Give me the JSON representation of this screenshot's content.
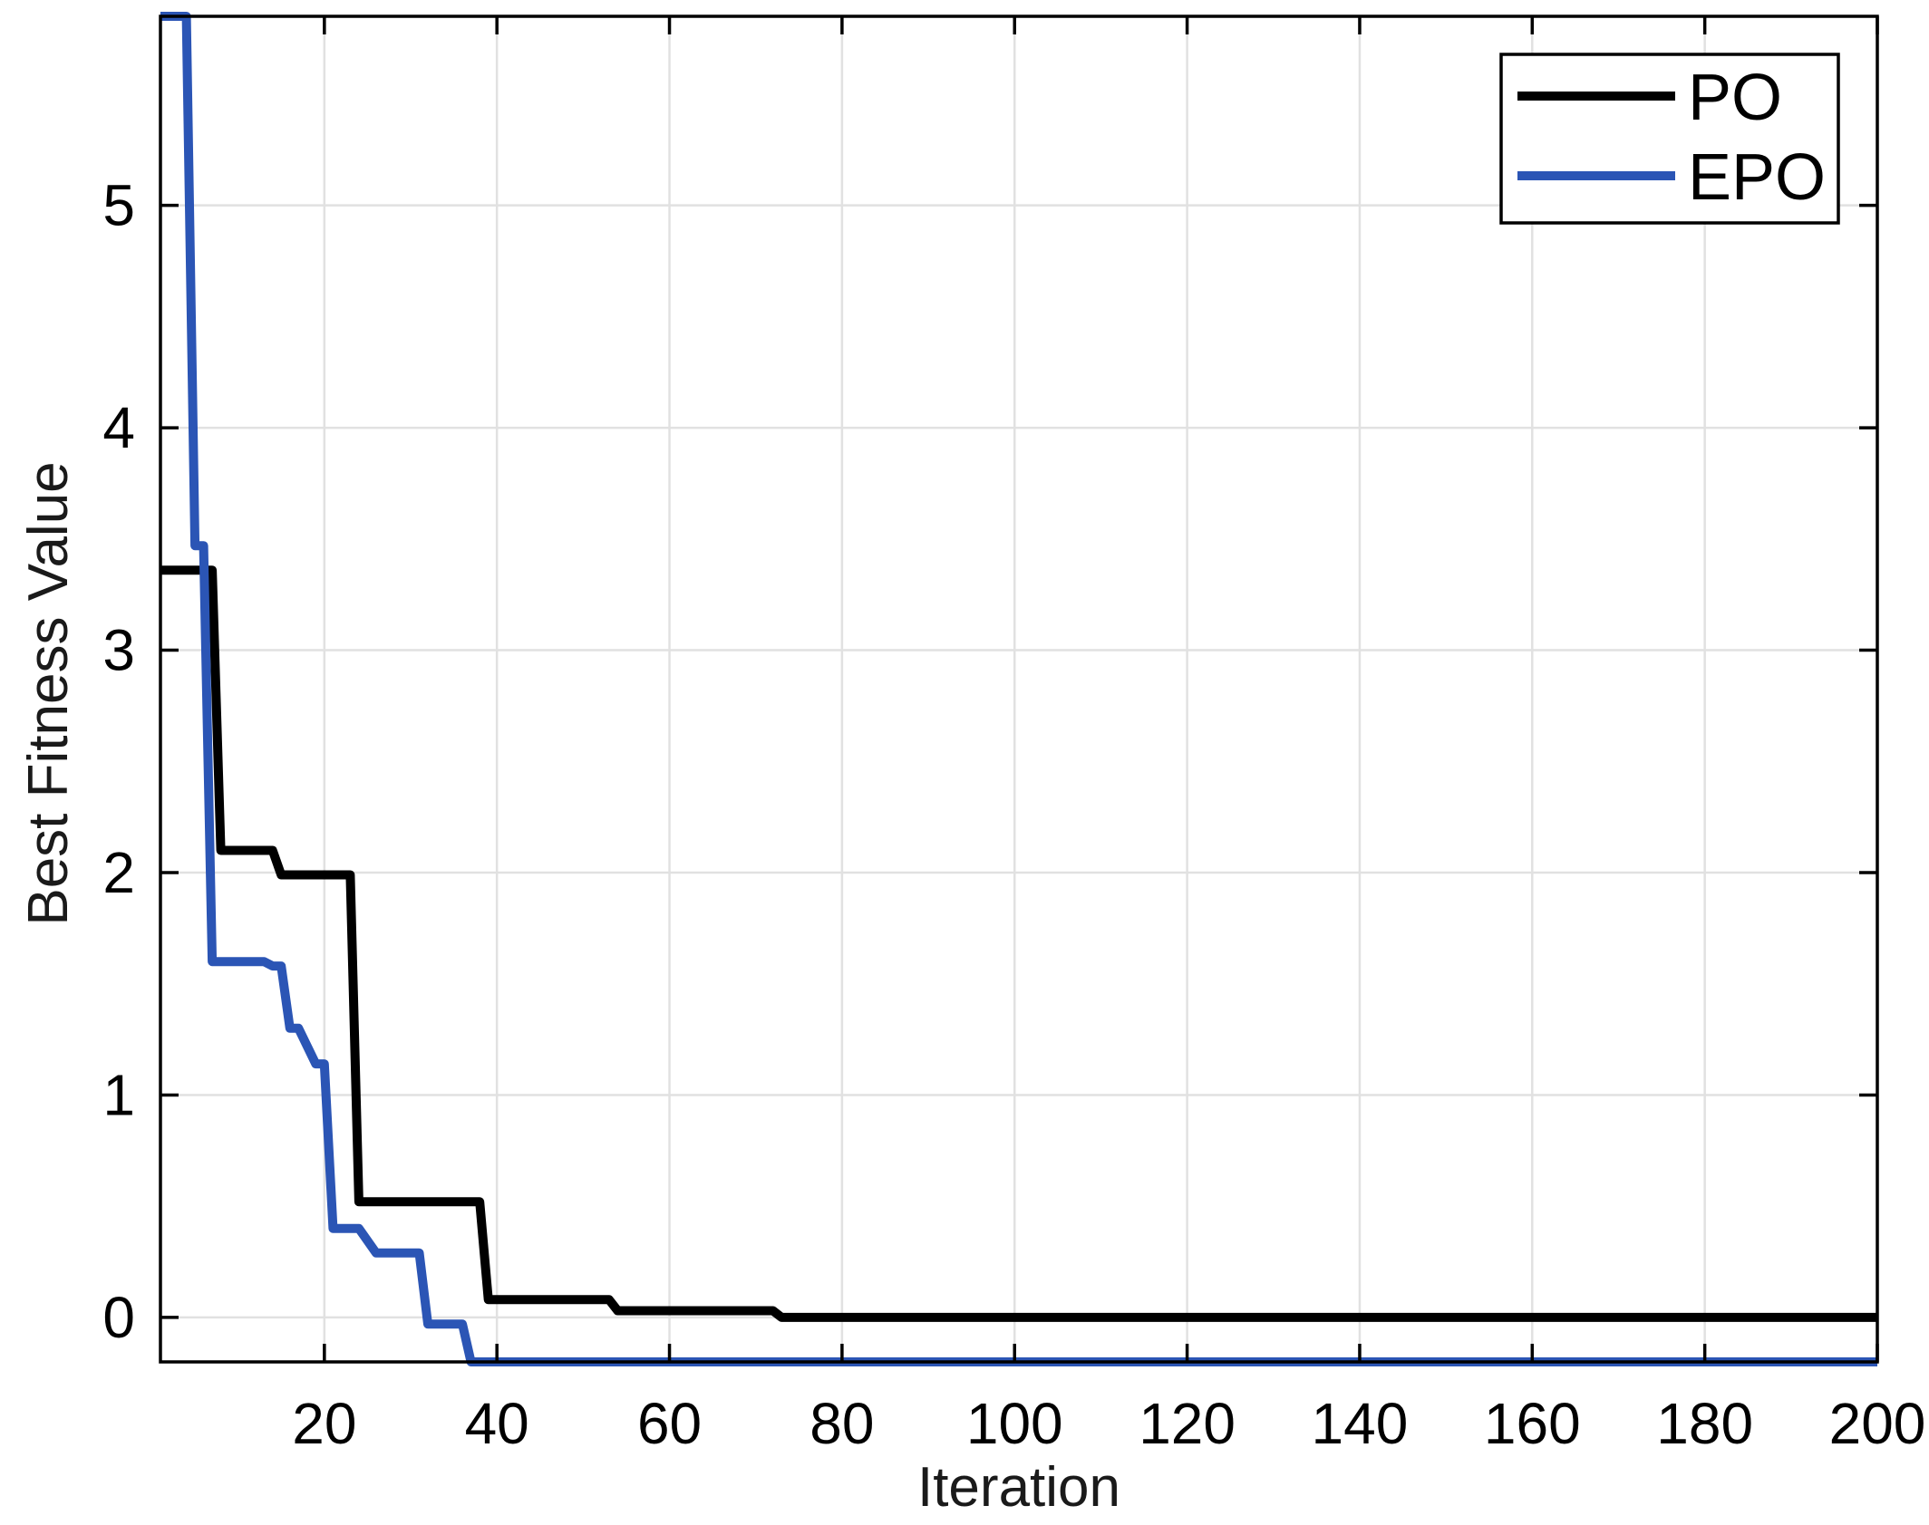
{
  "chart_data": {
    "type": "line",
    "title": "",
    "xlabel": "Iteration",
    "ylabel": "Best Fitness Value",
    "xlim": [
      1,
      200
    ],
    "ylim": [
      -0.2,
      5.85
    ],
    "xticks": [
      20,
      40,
      60,
      80,
      100,
      120,
      140,
      160,
      180,
      200
    ],
    "yticks": [
      0,
      1,
      2,
      3,
      4,
      5
    ],
    "grid": true,
    "legend": "top-right",
    "series": [
      {
        "name": "PO",
        "color": "#000000",
        "points": [
          [
            1,
            3.36
          ],
          [
            7,
            3.36
          ],
          [
            8,
            2.1
          ],
          [
            14,
            2.1
          ],
          [
            15,
            1.99
          ],
          [
            23,
            1.99
          ],
          [
            24,
            0.52
          ],
          [
            38,
            0.52
          ],
          [
            39,
            0.08
          ],
          [
            53,
            0.08
          ],
          [
            54,
            0.03
          ],
          [
            72,
            0.03
          ],
          [
            73,
            0.0
          ],
          [
            200,
            0.0
          ]
        ]
      },
      {
        "name": "EPO",
        "color": "#2b55b5",
        "points": [
          [
            1,
            5.85
          ],
          [
            4,
            5.85
          ],
          [
            5,
            3.47
          ],
          [
            6,
            3.47
          ],
          [
            7,
            1.6
          ],
          [
            13,
            1.6
          ],
          [
            14,
            1.58
          ],
          [
            15,
            1.58
          ],
          [
            16,
            1.3
          ],
          [
            17,
            1.3
          ],
          [
            19,
            1.14
          ],
          [
            20,
            1.14
          ],
          [
            21,
            0.4
          ],
          [
            24,
            0.4
          ],
          [
            26,
            0.29
          ],
          [
            31,
            0.29
          ],
          [
            32,
            -0.03
          ],
          [
            36,
            -0.03
          ],
          [
            37,
            -0.2
          ],
          [
            200,
            -0.2
          ]
        ]
      }
    ]
  }
}
